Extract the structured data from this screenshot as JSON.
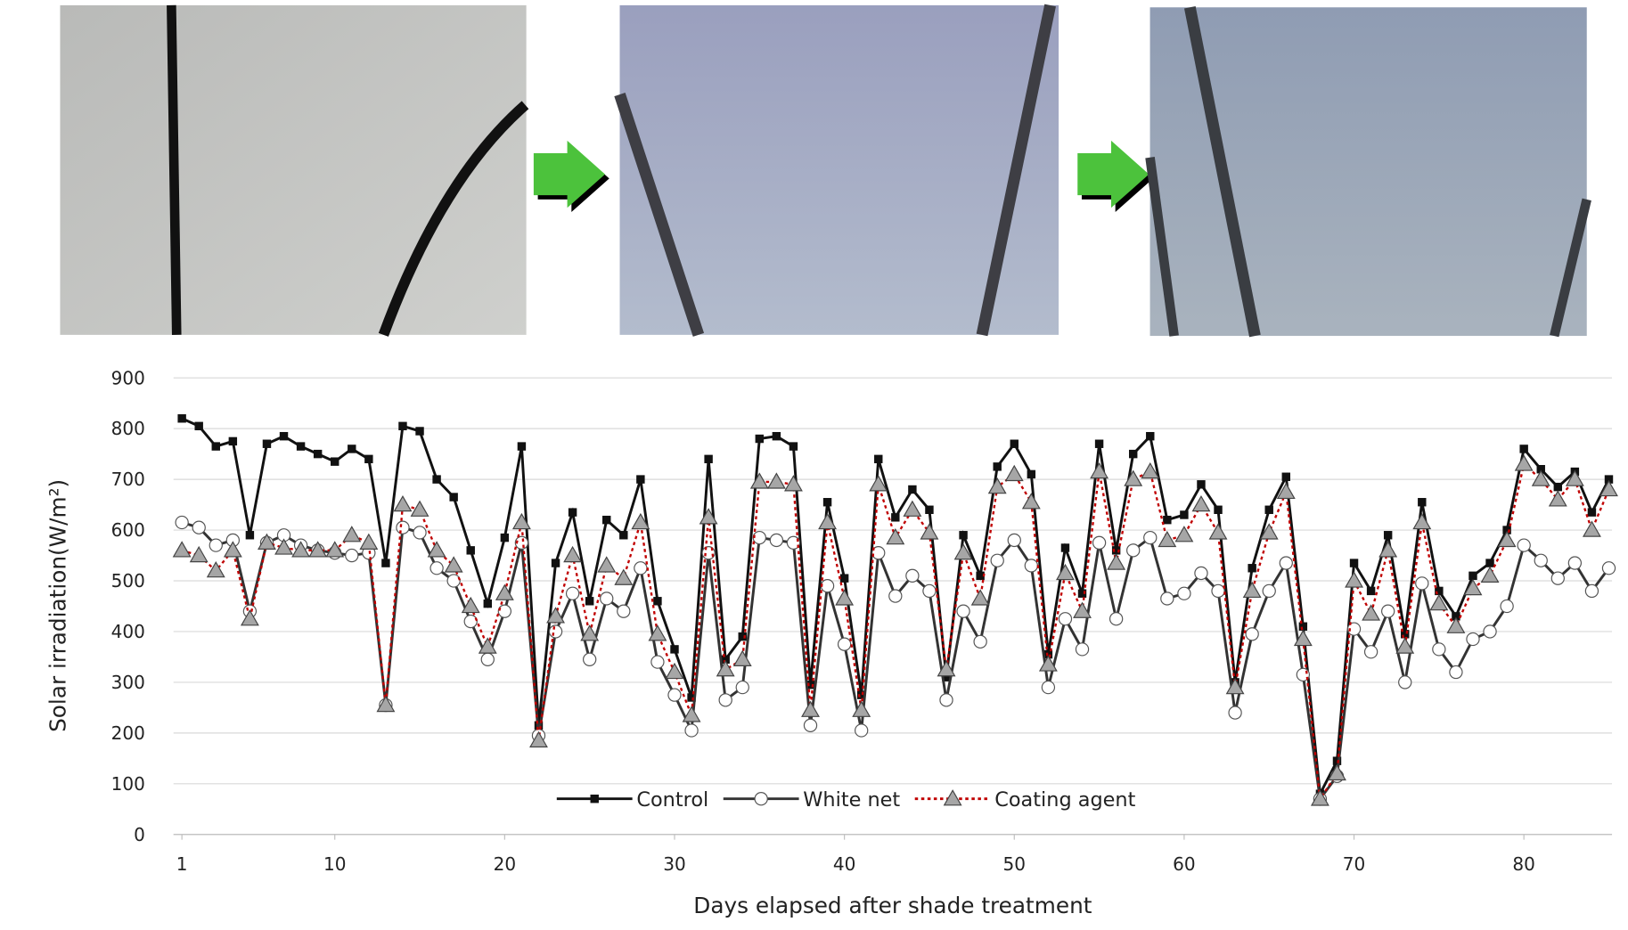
{
  "chart_data": {
    "type": "line",
    "x_label": "Days elapsed after shade treatment",
    "y_label": "Solar irradiation(W/m²)",
    "x": [
      1,
      2,
      3,
      4,
      5,
      6,
      7,
      8,
      9,
      10,
      11,
      12,
      13,
      14,
      15,
      16,
      17,
      18,
      19,
      20,
      21,
      22,
      23,
      24,
      25,
      26,
      27,
      28,
      29,
      30,
      31,
      32,
      33,
      34,
      35,
      36,
      37,
      38,
      39,
      40,
      41,
      42,
      43,
      44,
      45,
      46,
      47,
      48,
      49,
      50,
      51,
      52,
      53,
      54,
      55,
      56,
      57,
      58,
      59,
      60,
      61,
      62,
      63,
      64,
      65,
      66,
      67,
      68,
      69,
      70,
      71,
      72,
      73,
      74,
      75,
      76,
      77,
      78,
      79,
      80,
      81,
      82,
      83,
      84,
      85
    ],
    "xlim": [
      1,
      85
    ],
    "xticks": [
      1,
      10,
      20,
      30,
      40,
      50,
      60,
      70,
      80
    ],
    "ylim": [
      0,
      900
    ],
    "yticks": [
      0,
      100,
      200,
      300,
      400,
      500,
      600,
      700,
      800,
      900
    ],
    "grid": true,
    "legend": "bottom",
    "series": [
      {
        "name": "Control",
        "color": "#111111",
        "marker": "square",
        "dash": "solid",
        "values": [
          820,
          805,
          765,
          775,
          590,
          770,
          785,
          765,
          750,
          735,
          760,
          740,
          535,
          805,
          795,
          700,
          665,
          560,
          455,
          585,
          765,
          215,
          535,
          635,
          460,
          620,
          590,
          700,
          460,
          365,
          270,
          740,
          345,
          390,
          780,
          785,
          765,
          295,
          655,
          505,
          275,
          740,
          625,
          680,
          640,
          310,
          590,
          510,
          725,
          770,
          710,
          355,
          565,
          475,
          770,
          560,
          750,
          785,
          620,
          630,
          690,
          640,
          300,
          525,
          640,
          705,
          410,
          80,
          145,
          535,
          480,
          590,
          395,
          655,
          480,
          430,
          510,
          535,
          600,
          760,
          720,
          685,
          715,
          635,
          700
        ]
      },
      {
        "name": "White net",
        "color": "#333333",
        "marker": "circle",
        "dash": "solid",
        "values": [
          615,
          605,
          570,
          580,
          440,
          575,
          590,
          570,
          560,
          555,
          550,
          555,
          255,
          605,
          595,
          525,
          500,
          420,
          345,
          440,
          575,
          195,
          400,
          475,
          345,
          465,
          440,
          525,
          340,
          275,
          205,
          555,
          265,
          290,
          585,
          580,
          575,
          215,
          490,
          375,
          205,
          555,
          470,
          510,
          480,
          265,
          440,
          380,
          540,
          580,
          530,
          290,
          425,
          365,
          575,
          425,
          560,
          585,
          465,
          475,
          515,
          480,
          240,
          395,
          480,
          535,
          315,
          70,
          115,
          405,
          360,
          440,
          300,
          495,
          365,
          320,
          385,
          400,
          450,
          570,
          540,
          505,
          535,
          480,
          525
        ]
      },
      {
        "name": "Coating agent",
        "color": "#c00000",
        "marker": "triangle",
        "dash": "dotted",
        "values": [
          560,
          550,
          520,
          560,
          425,
          575,
          565,
          560,
          560,
          560,
          590,
          575,
          255,
          650,
          640,
          560,
          530,
          450,
          370,
          475,
          615,
          185,
          430,
          550,
          395,
          530,
          505,
          615,
          395,
          320,
          235,
          625,
          325,
          345,
          695,
          695,
          690,
          245,
          615,
          465,
          245,
          690,
          585,
          640,
          595,
          325,
          555,
          465,
          685,
          710,
          655,
          335,
          515,
          440,
          715,
          535,
          700,
          715,
          580,
          590,
          650,
          595,
          290,
          480,
          595,
          675,
          385,
          70,
          120,
          500,
          435,
          560,
          370,
          615,
          455,
          410,
          485,
          510,
          580,
          730,
          700,
          660,
          700,
          600,
          680
        ]
      }
    ]
  }
}
